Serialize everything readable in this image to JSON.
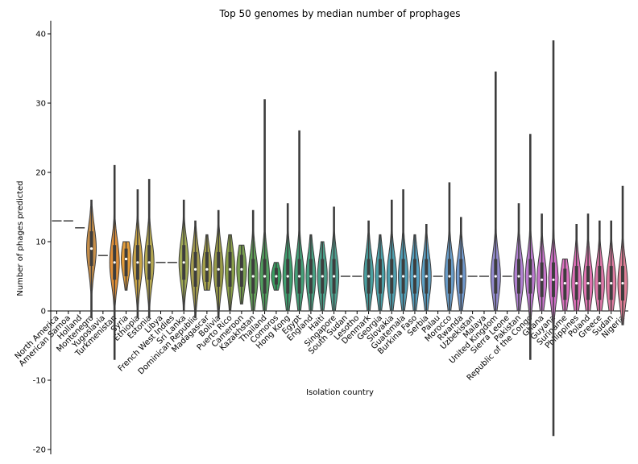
{
  "chart_data": {
    "type": "violin",
    "title": "Top 50 genomes by median number of prophages",
    "xlabel": "Isolation country",
    "ylabel": "Number of phages predicted",
    "ylim": [
      -20,
      42
    ],
    "yticks": [
      -20,
      -10,
      0,
      10,
      20,
      30,
      40
    ],
    "grid": false,
    "legend": "none",
    "categories": [
      "North America",
      "American Samoa",
      "Holland",
      "Montenegro",
      "Yugoslavia",
      "Turkmenistan",
      "Syria",
      "Ethiopia",
      "Estonia",
      "Libya",
      "French West Indies",
      "Sri Lanka",
      "Dominican Republic",
      "Madagascar",
      "Bolivia",
      "Puerto Rico",
      "Cameroon",
      "Kazakhstan",
      "Thailand",
      "Comoros",
      "Hong Kong",
      "Egypt",
      "England",
      "Haiti",
      "Singapore",
      "South Sudan",
      "Lesotho",
      "Denmark",
      "Georgia",
      "Slovakia",
      "Guatemala",
      "Burkina Faso",
      "Serbia",
      "Palau",
      "Morocco",
      "Rwanda",
      "Uzbekistan",
      "Malaya",
      "United Kingdom",
      "Sierra Leone",
      "Pakistan",
      "Republic of the Congo",
      "Ghana",
      "Guyana",
      "Suriname",
      "Philippines",
      "Poland",
      "Greece",
      "Sudan",
      "Nigeria"
    ],
    "medians": [
      13,
      13,
      12,
      9,
      8,
      7,
      7.5,
      7,
      7,
      7,
      7,
      7,
      6,
      6,
      6,
      6,
      6,
      5,
      5,
      5,
      5,
      5,
      5,
      5,
      5,
      5,
      5,
      5,
      5,
      5,
      5,
      5,
      5,
      5,
      5,
      5,
      5,
      5,
      5,
      5,
      5,
      5,
      4.5,
      4.5,
      4,
      4,
      4,
      4,
      4,
      4
    ],
    "mins": [
      13,
      13,
      12,
      -1,
      8,
      -7,
      3,
      -1,
      -1,
      7,
      7,
      0,
      -1,
      3,
      -1,
      0,
      1,
      0,
      0,
      3,
      0,
      0,
      0,
      0,
      0,
      5,
      5,
      0,
      0,
      0,
      0,
      0,
      0,
      5,
      0,
      0,
      5,
      5,
      0,
      5,
      0,
      -7,
      0,
      -18,
      0,
      0,
      0,
      0,
      0,
      -2
    ],
    "maxs": [
      13,
      13,
      12,
      16,
      8,
      21,
      10,
      17.5,
      19,
      7,
      7,
      16,
      13,
      11,
      14.5,
      11,
      9.5,
      14.5,
      30.5,
      7,
      15.5,
      26,
      11,
      10,
      15,
      5,
      5,
      13,
      11,
      16,
      17.5,
      11,
      12.5,
      5,
      18.5,
      13.5,
      5,
      5,
      34.5,
      5,
      15.5,
      25.5,
      14,
      39,
      7.5,
      12.5,
      14,
      13,
      13,
      18
    ],
    "colors": [
      "#ccbb44",
      "#bbbb44",
      "#bb9944",
      "#c78f4a",
      "#cc8844",
      "#e0903a",
      "#e39c3a",
      "#c8a448",
      "#b5a850",
      "#a8aa55",
      "#9caa55",
      "#a0aa55",
      "#a8a050",
      "#a4a04a",
      "#9a9c48",
      "#8aa048",
      "#7aa050",
      "#62a058",
      "#52a060",
      "#3a9e62",
      "#40a070",
      "#44a078",
      "#48a082",
      "#4ca08a",
      "#50a090",
      "#4ea094",
      "#4aa098",
      "#4aa0a0",
      "#4aa0a8",
      "#50a0b0",
      "#52a0b8",
      "#56a0c0",
      "#5ca0c4",
      "#60a0c8",
      "#689cc8",
      "#7098cc",
      "#7c94cc",
      "#8890d0",
      "#948cd0",
      "#a088d0",
      "#b080d0",
      "#bc7ad0",
      "#c876cc",
      "#d070c8",
      "#dc72c0",
      "#e070b8",
      "#e074b0",
      "#e078aa",
      "#e07ca2",
      "#e08098"
    ]
  }
}
